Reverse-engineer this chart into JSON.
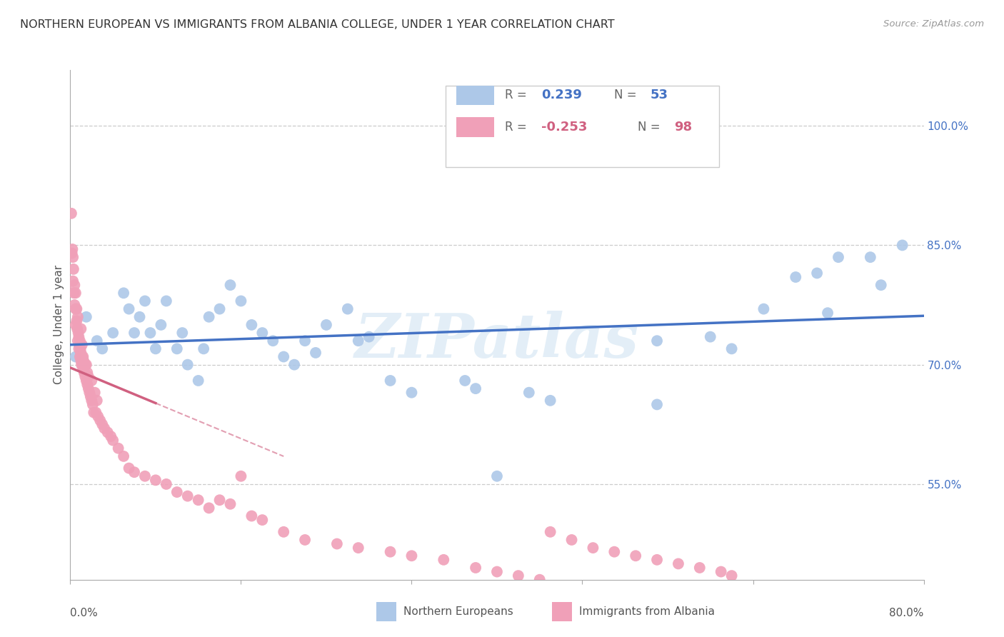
{
  "title": "NORTHERN EUROPEAN VS IMMIGRANTS FROM ALBANIA COLLEGE, UNDER 1 YEAR CORRELATION CHART",
  "source": "Source: ZipAtlas.com",
  "ylabel": "College, Under 1 year",
  "right_yticks": [
    55.0,
    70.0,
    85.0,
    100.0
  ],
  "right_ytick_labels": [
    "55.0%",
    "70.0%",
    "85.0%",
    "100.0%"
  ],
  "watermark": "ZIPatlas",
  "blue_color": "#adc8e8",
  "blue_line_color": "#4472c4",
  "pink_color": "#f0a0b8",
  "pink_line_color": "#d06080",
  "xmin": 0.0,
  "xmax": 80.0,
  "ymin": 43.0,
  "ymax": 107.0,
  "blue_scatter_x": [
    0.5,
    1.5,
    2.5,
    3.0,
    4.0,
    5.0,
    5.5,
    6.0,
    6.5,
    7.0,
    7.5,
    8.0,
    8.5,
    9.0,
    10.0,
    10.5,
    11.0,
    12.0,
    12.5,
    13.0,
    14.0,
    15.0,
    16.0,
    17.0,
    18.0,
    19.0,
    20.0,
    21.0,
    22.0,
    23.0,
    24.0,
    26.0,
    27.0,
    28.0,
    30.0,
    32.0,
    37.0,
    38.0,
    40.0,
    43.0,
    45.0,
    55.0,
    60.0,
    65.0,
    68.0,
    70.0,
    72.0,
    75.0,
    76.0,
    78.0,
    55.0,
    62.0,
    71.0
  ],
  "blue_scatter_y": [
    71.0,
    76.0,
    73.0,
    72.0,
    74.0,
    79.0,
    77.0,
    74.0,
    76.0,
    78.0,
    74.0,
    72.0,
    75.0,
    78.0,
    72.0,
    74.0,
    70.0,
    68.0,
    72.0,
    76.0,
    77.0,
    80.0,
    78.0,
    75.0,
    74.0,
    73.0,
    71.0,
    70.0,
    73.0,
    71.5,
    75.0,
    77.0,
    73.0,
    73.5,
    68.0,
    66.5,
    68.0,
    67.0,
    56.0,
    66.5,
    65.5,
    73.0,
    73.5,
    77.0,
    81.0,
    81.5,
    83.5,
    83.5,
    80.0,
    85.0,
    65.0,
    72.0,
    76.5
  ],
  "pink_scatter_x": [
    0.1,
    0.15,
    0.2,
    0.25,
    0.25,
    0.3,
    0.35,
    0.4,
    0.4,
    0.5,
    0.5,
    0.5,
    0.6,
    0.6,
    0.65,
    0.7,
    0.7,
    0.75,
    0.8,
    0.8,
    0.85,
    0.9,
    0.9,
    0.95,
    1.0,
    1.0,
    1.0,
    1.05,
    1.1,
    1.1,
    1.15,
    1.2,
    1.2,
    1.25,
    1.3,
    1.3,
    1.35,
    1.4,
    1.4,
    1.5,
    1.5,
    1.6,
    1.6,
    1.7,
    1.7,
    1.8,
    1.9,
    2.0,
    2.0,
    2.1,
    2.2,
    2.3,
    2.4,
    2.5,
    2.6,
    2.8,
    3.0,
    3.2,
    3.5,
    3.8,
    4.0,
    4.5,
    5.0,
    5.5,
    6.0,
    7.0,
    8.0,
    9.0,
    10.0,
    11.0,
    12.0,
    13.0,
    14.0,
    15.0,
    16.0,
    17.0,
    18.0,
    20.0,
    22.0,
    25.0,
    27.0,
    30.0,
    32.0,
    35.0,
    38.0,
    40.0,
    42.0,
    44.0,
    45.0,
    47.0,
    49.0,
    51.0,
    53.0,
    55.0,
    57.0,
    59.0,
    61.0,
    62.0
  ],
  "pink_scatter_y": [
    89.0,
    84.0,
    84.5,
    83.5,
    80.5,
    82.0,
    79.0,
    80.0,
    77.5,
    79.0,
    77.0,
    75.0,
    75.5,
    77.0,
    74.5,
    76.0,
    73.0,
    74.0,
    73.5,
    72.0,
    72.5,
    71.0,
    73.0,
    72.0,
    71.5,
    70.5,
    74.5,
    70.0,
    71.0,
    72.5,
    70.0,
    71.0,
    69.5,
    70.5,
    69.0,
    70.0,
    69.0,
    68.5,
    70.0,
    68.0,
    70.0,
    67.5,
    69.0,
    67.0,
    68.5,
    66.5,
    66.0,
    65.5,
    68.0,
    65.0,
    64.0,
    66.5,
    64.0,
    65.5,
    63.5,
    63.0,
    62.5,
    62.0,
    61.5,
    61.0,
    60.5,
    59.5,
    58.5,
    57.0,
    56.5,
    56.0,
    55.5,
    55.0,
    54.0,
    53.5,
    53.0,
    52.0,
    53.0,
    52.5,
    56.0,
    51.0,
    50.5,
    49.0,
    48.0,
    47.5,
    47.0,
    46.5,
    46.0,
    45.5,
    44.5,
    44.0,
    43.5,
    43.0,
    49.0,
    48.0,
    47.0,
    46.5,
    46.0,
    45.5,
    45.0,
    44.5,
    44.0,
    43.5
  ]
}
